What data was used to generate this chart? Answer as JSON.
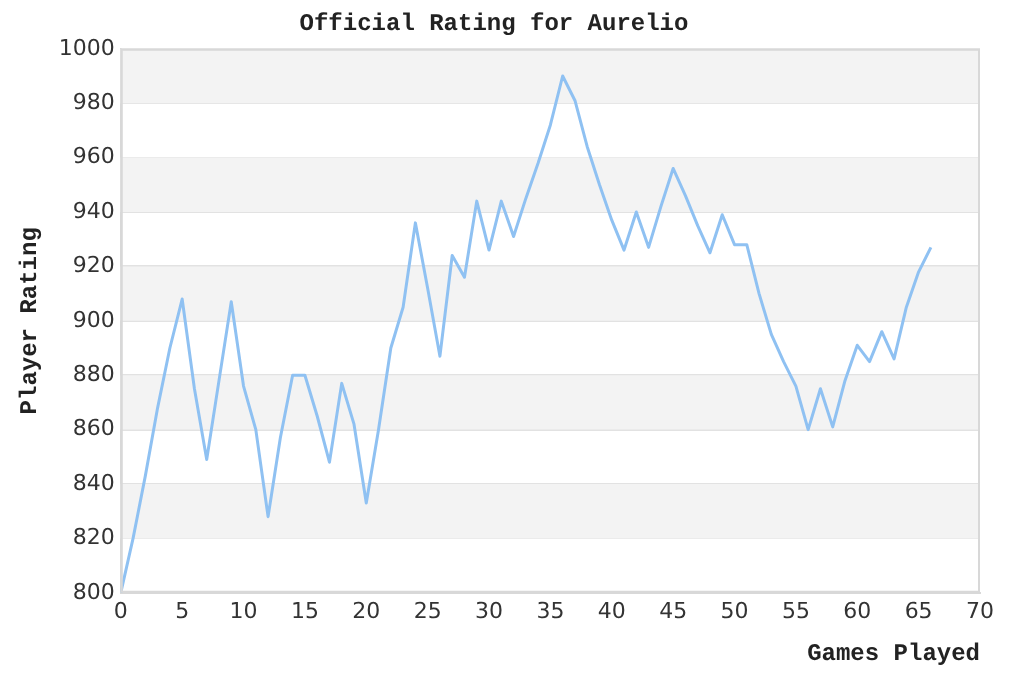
{
  "chart_data": {
    "type": "line",
    "title": "Official Rating for Aurelio",
    "xlabel": "Games Played",
    "ylabel": "Player Rating",
    "x": [
      0,
      1,
      2,
      3,
      4,
      5,
      6,
      7,
      8,
      9,
      10,
      11,
      12,
      13,
      14,
      15,
      16,
      17,
      18,
      19,
      20,
      21,
      22,
      23,
      24,
      25,
      26,
      27,
      28,
      29,
      30,
      31,
      32,
      33,
      34,
      35,
      36,
      37,
      38,
      39,
      40,
      41,
      42,
      43,
      44,
      45,
      46,
      47,
      48,
      49,
      50,
      51,
      52,
      53,
      54,
      55,
      56,
      57,
      58,
      59,
      60,
      61,
      62,
      63,
      64,
      65,
      66
    ],
    "series": [
      {
        "color": "#8fc1f2",
        "values": [
          800,
          820,
          843,
          868,
          890,
          908,
          875,
          849,
          878,
          907,
          876,
          860,
          828,
          857,
          880,
          880,
          865,
          848,
          877,
          862,
          833,
          860,
          890,
          905,
          936,
          912,
          887,
          924,
          916,
          944,
          926,
          944,
          931,
          945,
          958,
          972,
          990,
          981,
          964,
          950,
          937,
          926,
          940,
          927,
          942,
          956,
          946,
          935,
          925,
          939,
          928,
          928,
          910,
          895,
          885,
          876,
          860,
          875,
          861,
          878,
          891,
          885,
          896,
          886,
          905,
          918,
          927
        ]
      }
    ],
    "xlim": [
      0,
      70
    ],
    "xticks": [
      0,
      5,
      10,
      15,
      20,
      25,
      30,
      35,
      40,
      45,
      50,
      55,
      60,
      65,
      70
    ],
    "ylim": [
      800,
      1000
    ],
    "yticks": [
      800,
      820,
      840,
      860,
      880,
      900,
      920,
      940,
      960,
      980,
      1000
    ],
    "grid": "y",
    "legend": false,
    "marker": "none",
    "line_style": "solid"
  }
}
